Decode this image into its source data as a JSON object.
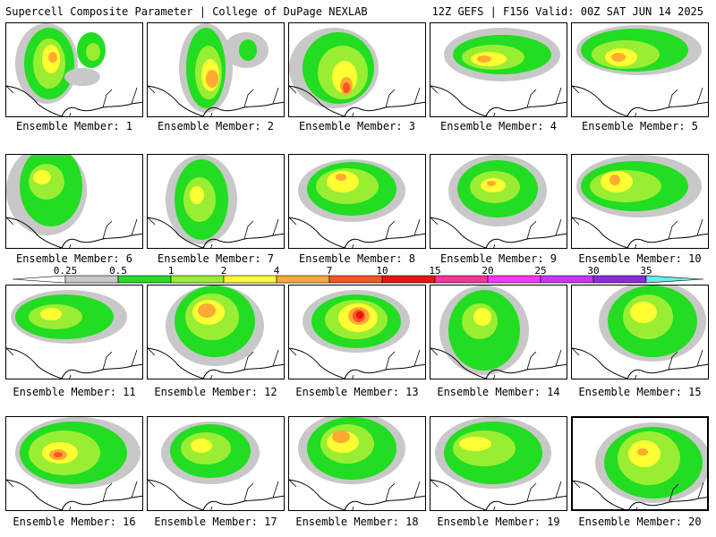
{
  "header": {
    "left_title": "Supercell Composite Parameter | College of DuPage NEXLAB",
    "right_title": "12Z GEFS | F156 Valid: 00Z SAT JUN 14 2025"
  },
  "colorbar": {
    "ticks": [
      "0.25",
      "0.5",
      "1",
      "2",
      "4",
      "7",
      "10",
      "15",
      "20",
      "25",
      "30",
      "35"
    ],
    "colors": [
      "#c8c8c8",
      "#22dd22",
      "#99ee33",
      "#ffff33",
      "#ffaa33",
      "#ff5522",
      "#ee1111",
      "#ff3399",
      "#ff33ff",
      "#cc33ff",
      "#8a2be2",
      "#bb88ee",
      "#66eeee"
    ]
  },
  "members": [
    {
      "label": "Ensemble Member: 1"
    },
    {
      "label": "Ensemble Member: 2"
    },
    {
      "label": "Ensemble Member: 3"
    },
    {
      "label": "Ensemble Member: 4"
    },
    {
      "label": "Ensemble Member: 5"
    },
    {
      "label": "Ensemble Member: 6"
    },
    {
      "label": "Ensemble Member: 7"
    },
    {
      "label": "Ensemble Member: 8"
    },
    {
      "label": "Ensemble Member: 9"
    },
    {
      "label": "Ensemble Member: 10"
    },
    {
      "label": "Ensemble Member: 11"
    },
    {
      "label": "Ensemble Member: 12"
    },
    {
      "label": "Ensemble Member: 13"
    },
    {
      "label": "Ensemble Member: 14"
    },
    {
      "label": "Ensemble Member: 15"
    },
    {
      "label": "Ensemble Member: 16"
    },
    {
      "label": "Ensemble Member: 17"
    },
    {
      "label": "Ensemble Member: 18"
    },
    {
      "label": "Ensemble Member: 19"
    },
    {
      "label": "Ensemble Member: 20"
    }
  ]
}
